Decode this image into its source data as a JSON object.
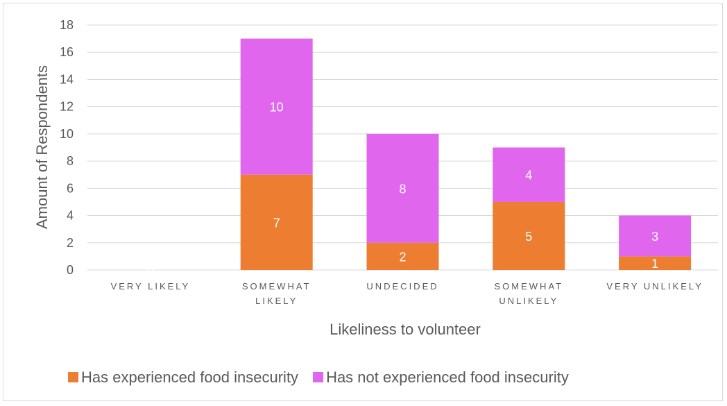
{
  "chart_data": {
    "type": "bar",
    "stacked": true,
    "categories": [
      [
        "VERY LIKELY"
      ],
      [
        "SOMEWHAT",
        "LIKELY"
      ],
      [
        "UNDECIDED"
      ],
      [
        "SOMEWHAT",
        "UNLIKELY"
      ],
      [
        "VERY UNLIKELY"
      ]
    ],
    "series": [
      {
        "name": "Has experienced food insecurity",
        "color": "#ed7d31",
        "values": [
          0,
          7,
          2,
          5,
          1
        ]
      },
      {
        "name": "Has not experienced food insecurity",
        "color": "#e066ee",
        "values": [
          0,
          10,
          8,
          4,
          3
        ]
      }
    ],
    "xlabel": "Likeliness to volunteer",
    "ylabel": "Amount of Respondents",
    "ylim": [
      0,
      18
    ],
    "yticks": [
      0,
      2,
      4,
      6,
      8,
      10,
      12,
      14,
      16,
      18
    ],
    "grid": true,
    "legend": "bottom"
  }
}
